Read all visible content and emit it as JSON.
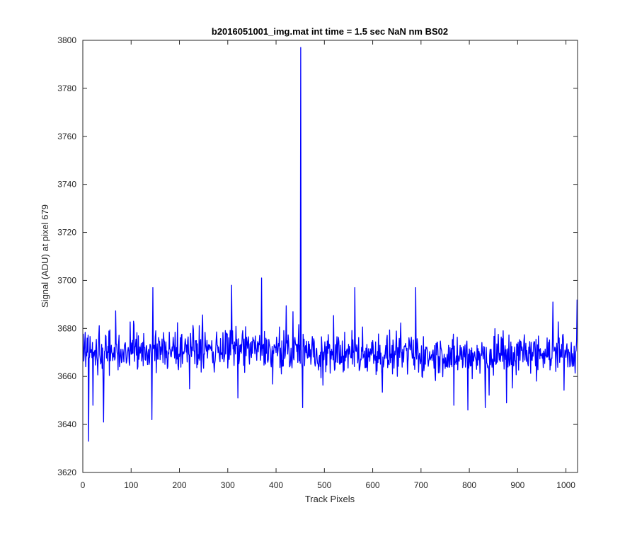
{
  "chart_data": {
    "type": "line",
    "title": "b2016051001_img.mat int time = 1.5 sec  NaN nm BS02",
    "xlabel": "Track Pixels",
    "ylabel": "Signal (ADU) at pixel 679",
    "xlim": [
      0,
      1024
    ],
    "ylim": [
      3620,
      3800
    ],
    "xticks": [
      0,
      100,
      200,
      300,
      400,
      500,
      600,
      700,
      800,
      900,
      1000
    ],
    "yticks": [
      3620,
      3640,
      3660,
      3680,
      3700,
      3720,
      3740,
      3760,
      3780,
      3800
    ],
    "grid": false,
    "line_color": "#0000ff",
    "series": [
      {
        "x_start": 1,
        "x_step": 1,
        "baseline": 3670,
        "noise_amplitude": 9,
        "peaks": [
          {
            "x": 12,
            "y": 3633
          },
          {
            "x": 21,
            "y": 3648
          },
          {
            "x": 43,
            "y": 3641
          },
          {
            "x": 143,
            "y": 3642
          },
          {
            "x": 145,
            "y": 3697
          },
          {
            "x": 308,
            "y": 3698
          },
          {
            "x": 321,
            "y": 3651
          },
          {
            "x": 370,
            "y": 3701
          },
          {
            "x": 451,
            "y": 3797
          },
          {
            "x": 455,
            "y": 3647
          },
          {
            "x": 563,
            "y": 3697
          },
          {
            "x": 689,
            "y": 3697
          },
          {
            "x": 768,
            "y": 3648
          },
          {
            "x": 797,
            "y": 3646
          },
          {
            "x": 833,
            "y": 3647
          },
          {
            "x": 877,
            "y": 3649
          },
          {
            "x": 973,
            "y": 3691
          },
          {
            "x": 1023,
            "y": 3692
          }
        ]
      }
    ]
  }
}
